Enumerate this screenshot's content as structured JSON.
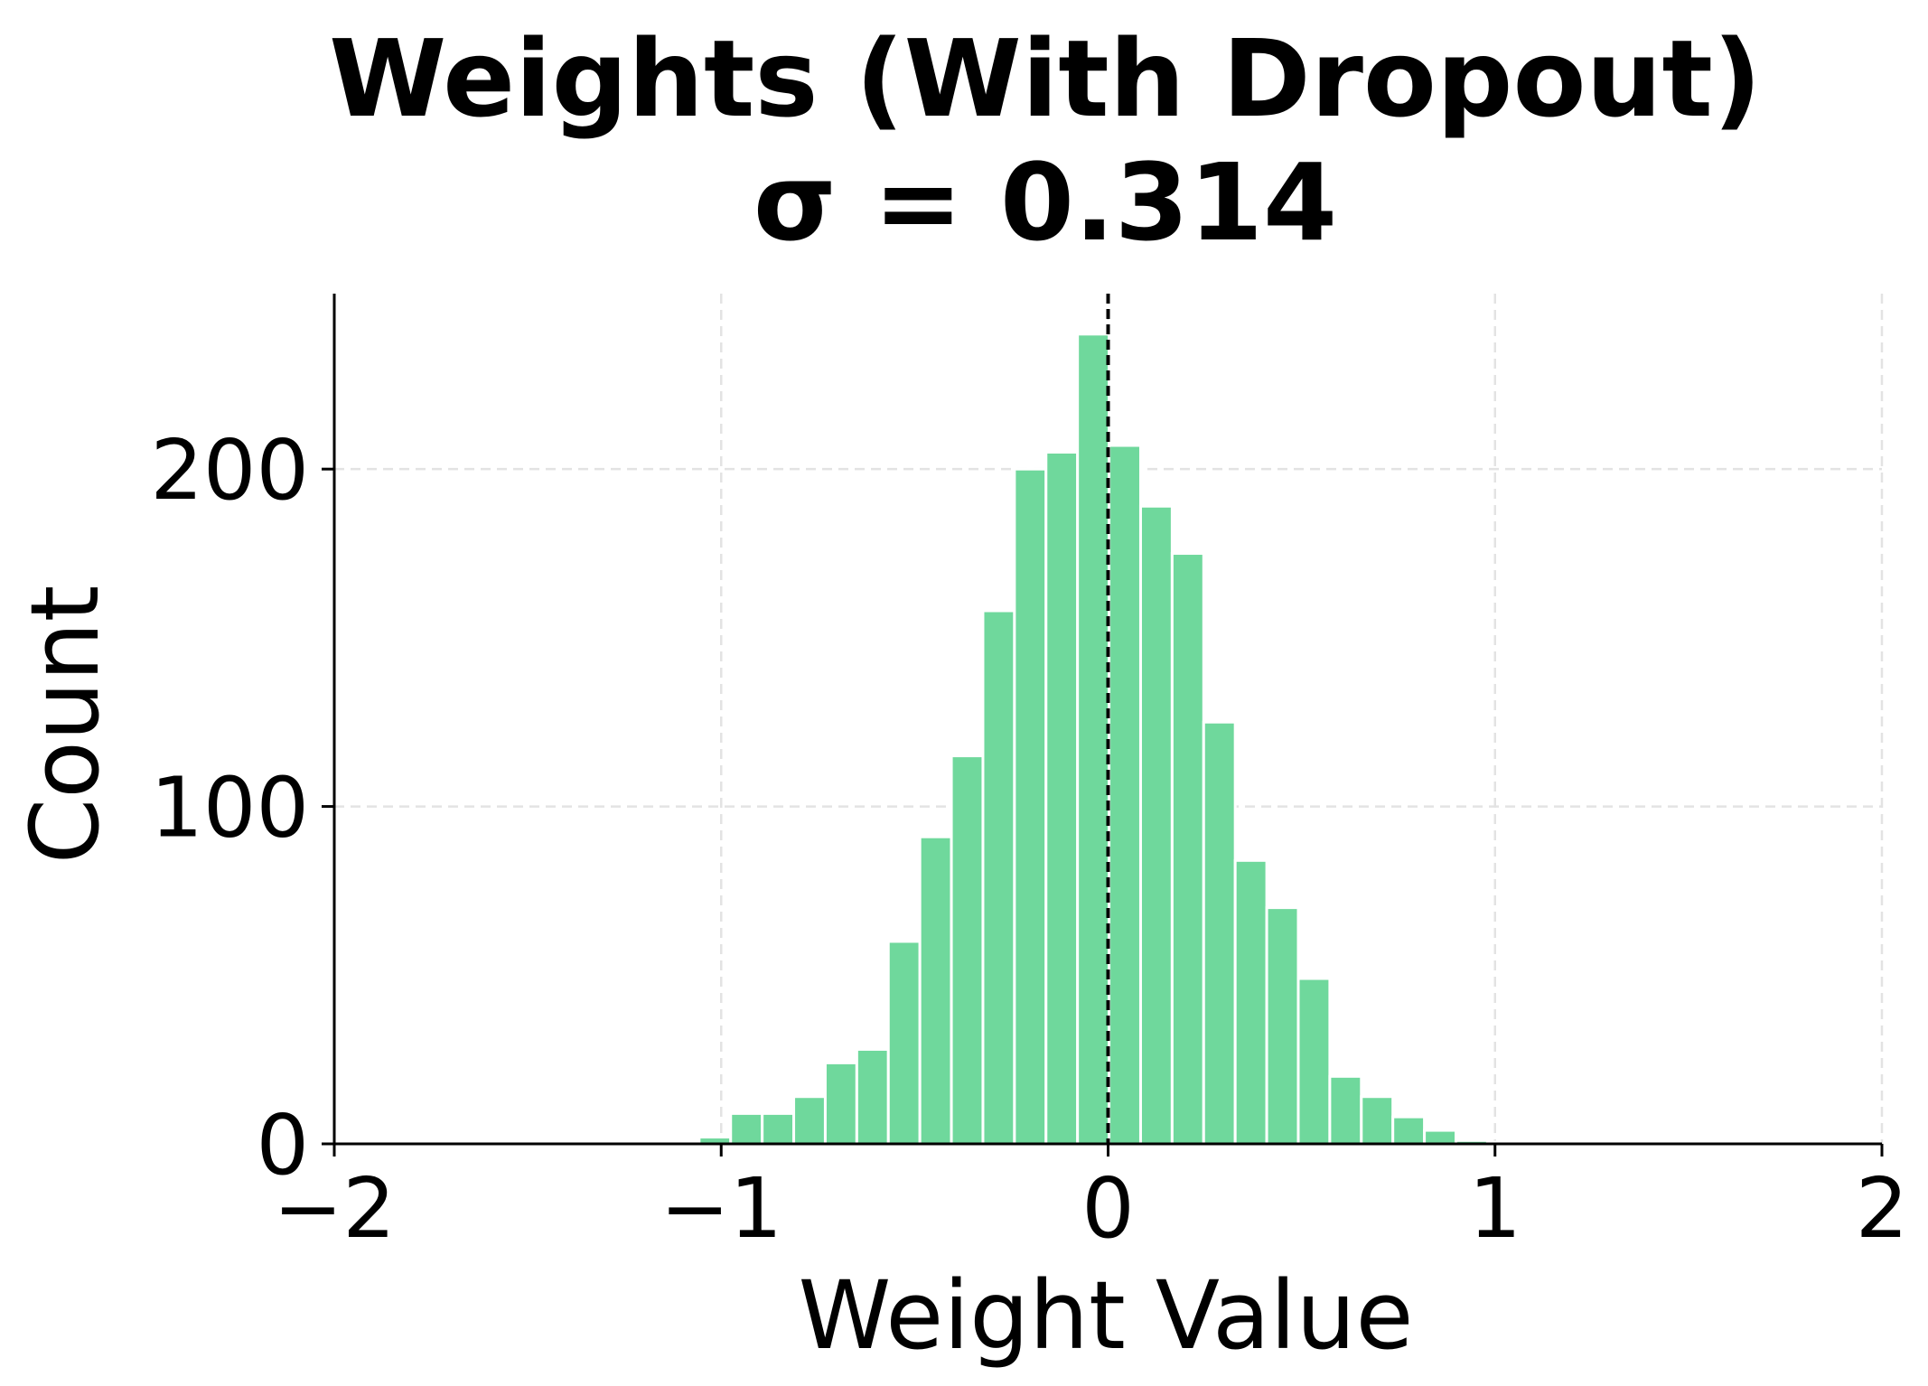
{
  "chart_data": {
    "type": "bar",
    "title": "Weights (With Dropout)",
    "subtitle": "σ = 0.314",
    "xlabel": "Weight Value",
    "ylabel": "Count",
    "xlim": [
      -2,
      2
    ],
    "ylim": [
      0,
      252
    ],
    "x_ticks": [
      -2,
      -1,
      0,
      1,
      2
    ],
    "x_tick_labels": [
      "−2",
      "−1",
      "0",
      "1",
      "2"
    ],
    "y_ticks": [
      0,
      100,
      200
    ],
    "y_tick_labels": [
      "0",
      "100",
      "200"
    ],
    "grid": true,
    "bar_color": "#6fd89c",
    "mean_line_x": 0,
    "bin_width": 0.0815,
    "bins": [
      {
        "x0": -1.22,
        "count": 0.5
      },
      {
        "x0": -1.1385,
        "count": 0.5
      },
      {
        "x0": -1.057,
        "count": 2
      },
      {
        "x0": -0.9755,
        "count": 9
      },
      {
        "x0": -0.894,
        "count": 9
      },
      {
        "x0": -0.8125,
        "count": 14
      },
      {
        "x0": -0.731,
        "count": 24
      },
      {
        "x0": -0.6495,
        "count": 28
      },
      {
        "x0": -0.568,
        "count": 60
      },
      {
        "x0": -0.4865,
        "count": 91
      },
      {
        "x0": -0.405,
        "count": 115
      },
      {
        "x0": -0.3235,
        "count": 158
      },
      {
        "x0": -0.242,
        "count": 200
      },
      {
        "x0": -0.1605,
        "count": 205
      },
      {
        "x0": -0.079,
        "count": 240
      },
      {
        "x0": 0.0025,
        "count": 207
      },
      {
        "x0": 0.084,
        "count": 189
      },
      {
        "x0": 0.1655,
        "count": 175
      },
      {
        "x0": 0.247,
        "count": 125
      },
      {
        "x0": 0.3285,
        "count": 84
      },
      {
        "x0": 0.41,
        "count": 70
      },
      {
        "x0": 0.4915,
        "count": 49
      },
      {
        "x0": 0.573,
        "count": 20
      },
      {
        "x0": 0.6545,
        "count": 14
      },
      {
        "x0": 0.736,
        "count": 8
      },
      {
        "x0": 0.8175,
        "count": 4
      },
      {
        "x0": 0.899,
        "count": 1
      },
      {
        "x0": 0.9805,
        "count": 0.5
      },
      {
        "x0": 1.39,
        "count": 0.5
      }
    ]
  }
}
